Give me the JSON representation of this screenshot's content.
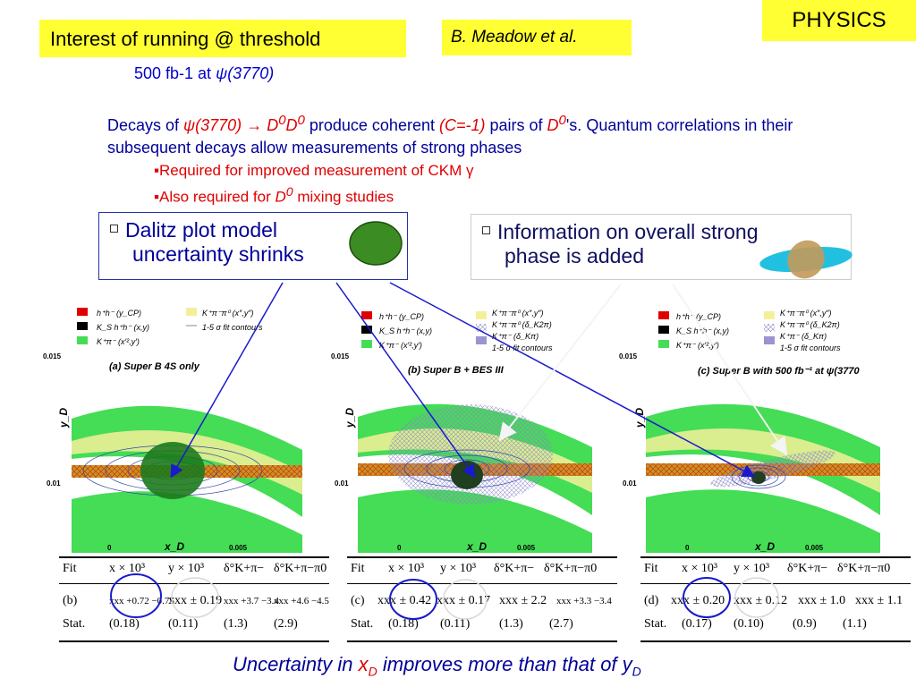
{
  "tag": "PHYSICS",
  "title": "Interest of running @ threshold",
  "author": "B. Meadow et al.",
  "lumi": {
    "a": "500 fb-1 at ",
    "psi": "ψ",
    "b": "(3770)"
  },
  "intro": {
    "p1": "Decays of ",
    "p2": "ψ(3770) ",
    "arrow": "→",
    "p3": " D",
    "p3sup": "0",
    "p4": "D",
    "p4sup": "0",
    "p5": " produce coherent ",
    "p6": "(C=-1)",
    "p7": " pairs of ",
    "p8": "D",
    "p8sup": "0",
    "p9": "'s. Quantum correlations in their subsequent decays allow measurements of strong phases"
  },
  "bullets": {
    "b1": "▪Required for improved measurement of CKM γ",
    "b2a": "▪Also required for ",
    "b2b": "D",
    "b2sup": "0",
    "b2c": " mixing studies"
  },
  "box1": {
    "line1": "Dalitz plot model",
    "line2": "uncertainty shrinks"
  },
  "box2": {
    "line1": "Information on overall strong",
    "line2": "phase is added"
  },
  "plots": [
    {
      "legend": [
        "h⁺h⁻   (y_CP)",
        "K_S h⁺h⁻ (x,y)",
        "K⁺π⁻  (x′²,y′)",
        "K⁺π⁻π⁰ (x″,y″)",
        "1-5 σ fit contours"
      ],
      "caption": "(a)  Super B 4S only",
      "ylabel": "y_D",
      "xlabel": "x_D",
      "yticks": [
        "0.015",
        "0.01"
      ],
      "xticks": [
        "0",
        "0.005"
      ]
    },
    {
      "legend": [
        "h⁺h⁻   (y_CP)",
        "K_S h⁺h⁻ (x,y)",
        "K⁺π⁻  (x′²,y′)",
        "K⁺π⁻π⁰ (x″,y″)",
        "K⁺π⁻π⁰ (δ_K2π)",
        "K⁺π⁻  (δ_Kπ)",
        "1-5 σ fit contours"
      ],
      "caption": "(b)  Super B + BES III",
      "ylabel": "y_D",
      "xlabel": "x_D",
      "yticks": [
        "0.015",
        "0.01"
      ],
      "xticks": [
        "0",
        "0.005"
      ]
    },
    {
      "legend": [
        "h⁺h⁻   (y_CP)",
        "K_S h⁺h⁻ (x,y)",
        "K⁺π⁻  (x′²,y′)",
        "K⁺π⁻π⁰ (x″,y″)",
        "K⁺π⁻π⁰ (δ_K2π)",
        "K⁺π⁻  (δ_Kπ)",
        "1-5 σ fit contours"
      ],
      "caption": "(c)  Super B with 500 fb⁻¹ at ψ(3770",
      "ylabel": "y_D",
      "xlabel": "x_D",
      "yticks": [
        "0.015",
        "0.01"
      ],
      "xticks": [
        "0",
        "0.005"
      ]
    }
  ],
  "tables": [
    {
      "header": [
        "Fit",
        "x × 10³",
        "y × 10³",
        "δ°K+π−",
        "δ°K+π−π0"
      ],
      "row": [
        "(b)",
        "xxx +0.72 −0.75",
        "xxx ± 0.19",
        "xxx +3.7 −3.4",
        "xxx +4.6 −4.5"
      ],
      "stat": [
        "Stat.",
        "(0.18)",
        "(0.11)",
        "(1.3)",
        "(2.9)"
      ]
    },
    {
      "header": [
        "Fit",
        "x × 10³",
        "y × 10³",
        "δ°K+π−",
        "δ°K+π−π0"
      ],
      "row": [
        "(c)",
        "xxx ± 0.42",
        "xxx ± 0.17",
        "xxx ± 2.2",
        "xxx +3.3 −3.4"
      ],
      "stat": [
        "Stat.",
        "(0.18)",
        "(0.11)",
        "(1.3)",
        "(2.7)"
      ]
    },
    {
      "header": [
        "Fit",
        "x × 10³",
        "y × 10³",
        "δ°K+π−",
        "δ°K+π−π0"
      ],
      "row": [
        "(d)",
        "xxx ± 0.20",
        "xxx ± 0.12",
        "xxx ± 1.0",
        "xxx ± 1.1"
      ],
      "stat": [
        "Stat.",
        "(0.17)",
        "(0.10)",
        "(0.9)",
        "(1.1)"
      ]
    }
  ],
  "footer": {
    "a": "Uncertainty in ",
    "x": "x",
    "xsub": "D",
    "b": " improves more than that of ",
    "y": "y",
    "ysub": "D"
  },
  "colors": {
    "highlight": "#ffff33",
    "text_blue": "#000099",
    "text_red": "#e00000",
    "band_green": "#33dd55",
    "band_orange": "#c8941e",
    "ellipse_green": "#2d8a20",
    "arrow_blue": "#1a1acc",
    "circle_blue": "#1a1acc"
  }
}
